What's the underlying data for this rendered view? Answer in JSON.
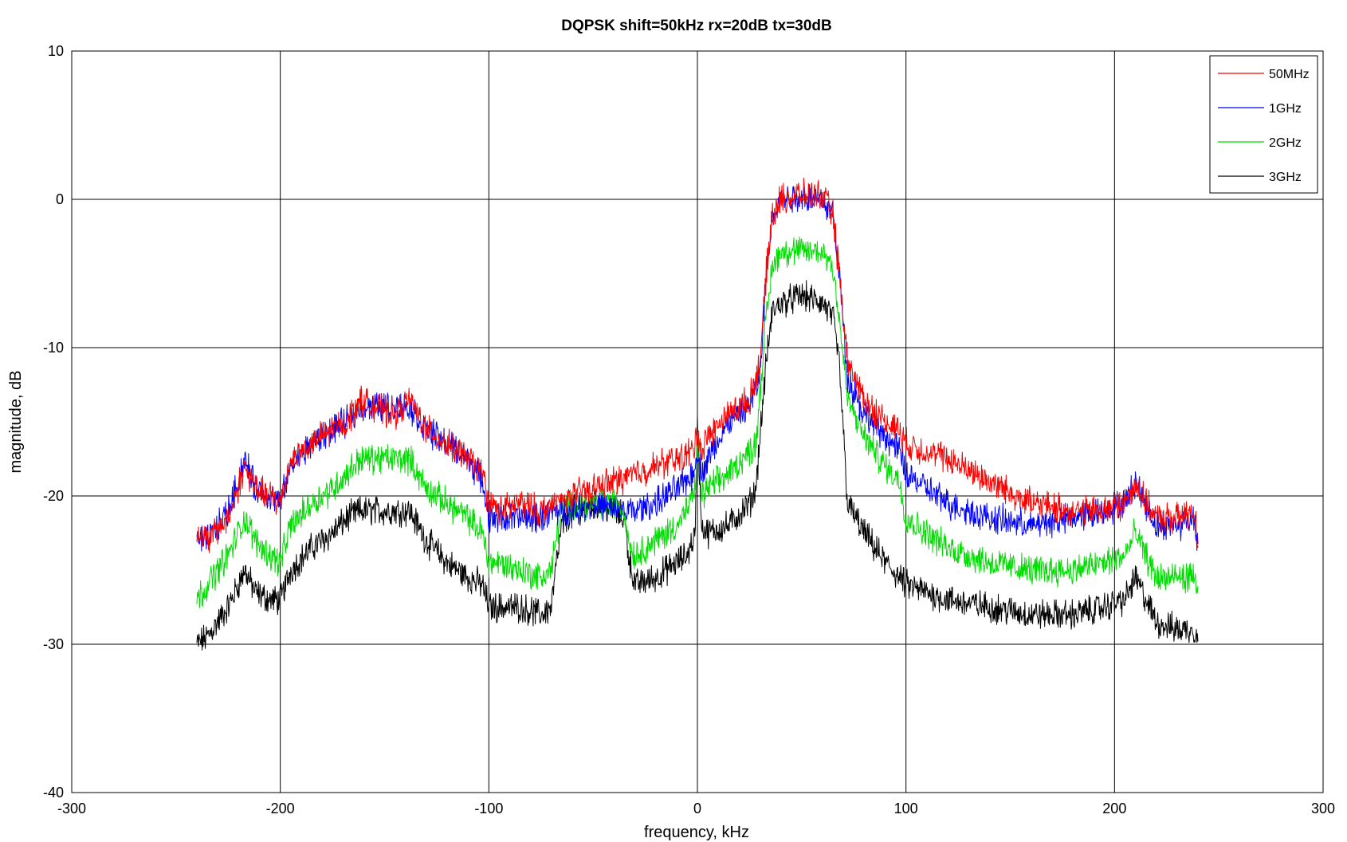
{
  "chart_data": {
    "type": "line",
    "title": "DQPSK shift=50kHz rx=20dB tx=30dB",
    "xlabel": "frequency, kHz",
    "ylabel": "magnitude, dB",
    "xlim": [
      -300,
      300
    ],
    "ylim": [
      -40,
      10
    ],
    "xticks": [
      -300,
      -200,
      -100,
      0,
      100,
      200,
      300
    ],
    "yticks": [
      10,
      0,
      -10,
      -20,
      -30,
      -40
    ],
    "grid": true,
    "legend_position": "top-right",
    "series": [
      {
        "name": "50MHz",
        "color": "#ff0000",
        "x": [
          -240,
          -235,
          -225,
          -217,
          -212,
          -205,
          -200,
          -195,
          -185,
          -175,
          -168,
          -162,
          -155,
          -145,
          -138,
          -130,
          -120,
          -110,
          -103,
          -100,
          -95,
          -85,
          -75,
          -68,
          -60,
          -50,
          -40,
          -30,
          -20,
          -10,
          -2,
          0,
          2,
          5,
          15,
          25,
          30,
          33,
          36,
          40,
          50,
          60,
          65,
          68,
          72,
          80,
          90,
          97,
          100,
          110,
          120,
          140,
          160,
          180,
          195,
          205,
          210,
          215,
          220,
          230,
          238,
          240
        ],
        "values": [
          -22.5,
          -23,
          -21.5,
          -18,
          -19.5,
          -20,
          -20.5,
          -17.5,
          -16.5,
          -15.5,
          -15,
          -13.5,
          -14,
          -14.5,
          -13.5,
          -15.5,
          -16.5,
          -17.5,
          -18.5,
          -20.5,
          -21,
          -20.5,
          -21,
          -20.5,
          -20,
          -19.5,
          -19,
          -18.5,
          -18,
          -17.5,
          -17,
          -15.5,
          -17,
          -16,
          -14.5,
          -13.5,
          -11,
          -5,
          -1,
          0,
          0.3,
          0.2,
          -1,
          -5,
          -11,
          -13.5,
          -15,
          -15.5,
          -16.5,
          -17,
          -17.5,
          -19,
          -20.5,
          -21,
          -21,
          -20.5,
          -19,
          -20.5,
          -21.5,
          -21.5,
          -21,
          -23
        ]
      },
      {
        "name": "1GHz",
        "color": "#0000ff",
        "x": [
          -240,
          -235,
          -225,
          -217,
          -212,
          -205,
          -200,
          -195,
          -185,
          -175,
          -168,
          -162,
          -155,
          -145,
          -138,
          -130,
          -120,
          -110,
          -103,
          -100,
          -95,
          -85,
          -75,
          -68,
          -60,
          -50,
          -40,
          -30,
          -20,
          -10,
          -2,
          0,
          2,
          5,
          15,
          25,
          30,
          33,
          36,
          40,
          50,
          60,
          65,
          68,
          72,
          80,
          90,
          97,
          100,
          110,
          120,
          140,
          160,
          180,
          195,
          205,
          210,
          215,
          220,
          230,
          238,
          240
        ],
        "values": [
          -23,
          -23,
          -21,
          -17.5,
          -19.5,
          -20,
          -20.5,
          -18,
          -16.5,
          -15.5,
          -15,
          -14,
          -14,
          -14,
          -14,
          -15.5,
          -16.5,
          -17.5,
          -19,
          -21.5,
          -21.5,
          -21.5,
          -21.5,
          -21,
          -21,
          -20.5,
          -21,
          -21,
          -20.5,
          -19.5,
          -18.5,
          -17,
          -18.5,
          -17.5,
          -15,
          -14,
          -12,
          -5,
          -1,
          0,
          0.2,
          0,
          -1,
          -5,
          -12,
          -14.5,
          -16,
          -17,
          -18.5,
          -19.5,
          -20.5,
          -21.5,
          -22,
          -21.5,
          -21,
          -20.5,
          -19,
          -20.5,
          -22,
          -22,
          -21.5,
          -23
        ]
      },
      {
        "name": "2GHz",
        "color": "#00dd00",
        "x": [
          -240,
          -235,
          -225,
          -217,
          -212,
          -205,
          -200,
          -195,
          -185,
          -175,
          -168,
          -162,
          -155,
          -145,
          -138,
          -130,
          -120,
          -110,
          -103,
          -100,
          -95,
          -85,
          -75,
          -70,
          -68,
          -65,
          -60,
          -50,
          -40,
          -35,
          -33,
          -30,
          -20,
          -10,
          -5,
          -1,
          0,
          2,
          5,
          15,
          25,
          28,
          30,
          33,
          36,
          40,
          50,
          60,
          65,
          68,
          72,
          80,
          90,
          97,
          100,
          110,
          120,
          140,
          160,
          180,
          195,
          205,
          210,
          215,
          220,
          230,
          238,
          240
        ],
        "values": [
          -27,
          -26,
          -24,
          -21.5,
          -23,
          -24,
          -24.5,
          -22,
          -20.5,
          -19.5,
          -18.5,
          -17.5,
          -17.5,
          -17.5,
          -17.5,
          -19.5,
          -20.5,
          -21.5,
          -22.5,
          -24.5,
          -24.5,
          -25,
          -25.5,
          -25,
          -23,
          -21,
          -20.5,
          -20.5,
          -20.5,
          -21,
          -23,
          -24,
          -23,
          -22,
          -21,
          -19.5,
          -16,
          -20,
          -19.5,
          -18.5,
          -17,
          -16.5,
          -13,
          -8,
          -4.5,
          -3.5,
          -3.5,
          -3.5,
          -4.5,
          -8,
          -13.5,
          -16,
          -18,
          -19,
          -21.5,
          -22.5,
          -23.5,
          -24.5,
          -25,
          -25,
          -24.5,
          -24,
          -22.5,
          -24,
          -25.5,
          -25.5,
          -25.5,
          -26
        ]
      },
      {
        "name": "3GHz",
        "color": "#000000",
        "x": [
          -240,
          -235,
          -225,
          -217,
          -212,
          -205,
          -200,
          -195,
          -185,
          -175,
          -168,
          -162,
          -155,
          -145,
          -138,
          -130,
          -120,
          -110,
          -103,
          -100,
          -95,
          -85,
          -75,
          -70,
          -68,
          -65,
          -60,
          -50,
          -40,
          -35,
          -33,
          -30,
          -20,
          -10,
          -5,
          -1,
          0,
          2,
          5,
          15,
          25,
          28,
          30,
          33,
          36,
          40,
          50,
          60,
          65,
          68,
          72,
          80,
          90,
          97,
          100,
          110,
          120,
          140,
          160,
          180,
          195,
          205,
          210,
          215,
          220,
          230,
          238,
          240
        ],
        "values": [
          -30,
          -29.5,
          -27.5,
          -25,
          -26.5,
          -27,
          -27,
          -25,
          -23.5,
          -22.5,
          -21.5,
          -21,
          -21,
          -21,
          -21,
          -23,
          -24.5,
          -25.5,
          -26,
          -27.5,
          -27.5,
          -27.5,
          -28,
          -27.5,
          -25,
          -22,
          -21,
          -20.5,
          -21,
          -21.5,
          -24,
          -26,
          -25.5,
          -24.5,
          -24,
          -22.5,
          -15,
          -22,
          -22.5,
          -22,
          -20.5,
          -19.5,
          -16,
          -11,
          -7.5,
          -7,
          -6.5,
          -7,
          -8,
          -11,
          -20.5,
          -22.5,
          -24.5,
          -25.5,
          -26,
          -26.5,
          -27,
          -27.5,
          -28,
          -28,
          -27.5,
          -27,
          -25.5,
          -27,
          -28.5,
          -29,
          -29,
          -29.5
        ]
      }
    ]
  }
}
